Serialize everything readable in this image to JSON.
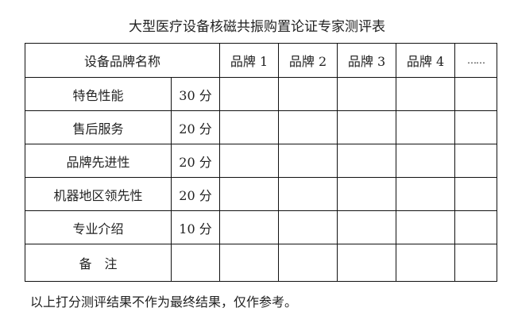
{
  "title": "大型医疗设备核磁共振购置论证专家测评表",
  "header": {
    "name_label": "设备品牌名称",
    "brands": [
      "品牌 1",
      "品牌 2",
      "品牌 3",
      "品牌 4",
      "……"
    ]
  },
  "rows": [
    {
      "criterion": "特色性能",
      "score": "30 分"
    },
    {
      "criterion": "售后服务",
      "score": "20 分"
    },
    {
      "criterion": "品牌先进性",
      "score": "20 分"
    },
    {
      "criterion": "机器地区领先性",
      "score": "20 分"
    },
    {
      "criterion": "专业介绍",
      "score": "10 分"
    },
    {
      "criterion": "备　注",
      "score": ""
    }
  ],
  "footer": "以上打分测评结果不作为最终结果，仅作参考。"
}
